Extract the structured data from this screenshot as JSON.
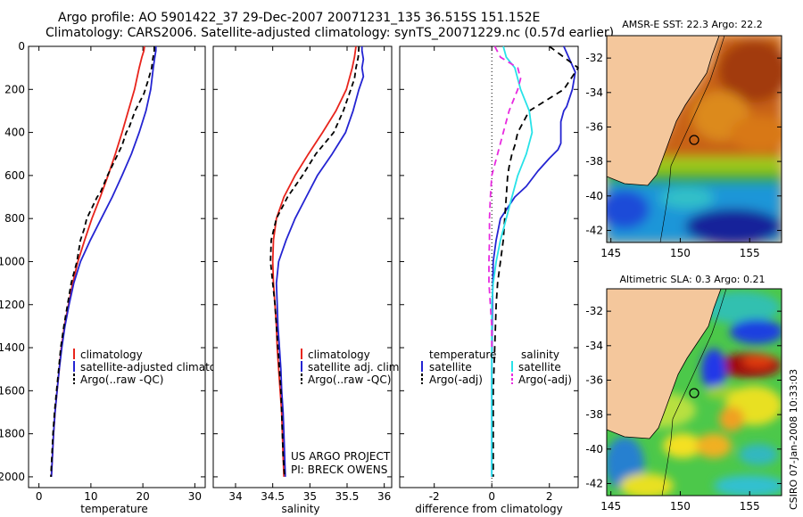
{
  "header": {
    "title_line1": "Argo profile: AO 5901422_37 29-Dec-2007 20071231_135 36.515S 151.152E",
    "title_line2": "Climatology: CARS2006. Satellite-adjusted climatology: synTS_20071229.nc (0.57d earlier)"
  },
  "colors": {
    "climatology": "#e8241c",
    "satellite": "#2424d2",
    "argo": "#000000",
    "sat_diff_sal": "#27e2e8",
    "argo_diff_sal": "#e82ae0"
  },
  "chart_data": [
    {
      "type": "line",
      "id": "temperature",
      "xlabel": "temperature",
      "ylabel": "",
      "xlim": [
        -2,
        32
      ],
      "ylim": [
        2050,
        0
      ],
      "xticks": [
        0,
        10,
        20,
        30
      ],
      "yticks": [
        0,
        200,
        400,
        600,
        800,
        1000,
        1200,
        1400,
        1600,
        1800,
        2000
      ],
      "series": [
        {
          "name": "climatology",
          "color": "#e8241c",
          "dash": "",
          "points": [
            [
              20.3,
              0
            ],
            [
              20.2,
              20
            ],
            [
              19.8,
              50
            ],
            [
              19.3,
              100
            ],
            [
              18.4,
              200
            ],
            [
              17.2,
              300
            ],
            [
              16.0,
              400
            ],
            [
              14.7,
              500
            ],
            [
              13.3,
              600
            ],
            [
              11.8,
              700
            ],
            [
              10.2,
              800
            ],
            [
              8.8,
              900
            ],
            [
              7.5,
              1000
            ],
            [
              6.5,
              1100
            ],
            [
              5.7,
              1200
            ],
            [
              4.9,
              1300
            ],
            [
              4.3,
              1400
            ],
            [
              3.9,
              1500
            ],
            [
              3.5,
              1600
            ],
            [
              3.1,
              1700
            ],
            [
              2.8,
              1800
            ],
            [
              2.6,
              1900
            ],
            [
              2.4,
              2000
            ]
          ]
        },
        {
          "name": "satellite-adjusted climatology",
          "color": "#2424d2",
          "dash": "",
          "points": [
            [
              22.5,
              0
            ],
            [
              22.5,
              20
            ],
            [
              22.3,
              50
            ],
            [
              22.0,
              100
            ],
            [
              21.5,
              200
            ],
            [
              20.6,
              300
            ],
            [
              19.3,
              400
            ],
            [
              17.8,
              500
            ],
            [
              16.0,
              600
            ],
            [
              14.1,
              700
            ],
            [
              12.0,
              800
            ],
            [
              9.9,
              900
            ],
            [
              8.0,
              1000
            ],
            [
              6.7,
              1100
            ],
            [
              5.8,
              1200
            ],
            [
              5.0,
              1300
            ],
            [
              4.4,
              1400
            ],
            [
              3.9,
              1500
            ],
            [
              3.5,
              1600
            ],
            [
              3.1,
              1700
            ],
            [
              2.8,
              1800
            ],
            [
              2.6,
              1900
            ],
            [
              2.4,
              2000
            ]
          ]
        },
        {
          "name": "Argo(..raw -QC)",
          "color": "#000000",
          "dash": "6,4",
          "points": [
            [
              22.2,
              0
            ],
            [
              22.2,
              20
            ],
            [
              21.9,
              60
            ],
            [
              21.7,
              100
            ],
            [
              21.0,
              160
            ],
            [
              20.2,
              220
            ],
            [
              18.5,
              300
            ],
            [
              17.3,
              380
            ],
            [
              16.8,
              400
            ],
            [
              16.0,
              460
            ],
            [
              15.2,
              500
            ],
            [
              14.0,
              560
            ],
            [
              13.2,
              600
            ],
            [
              11.8,
              680
            ],
            [
              11.2,
              700
            ],
            [
              10.0,
              760
            ],
            [
              9.2,
              800
            ],
            [
              8.7,
              850
            ],
            [
              8.0,
              900
            ],
            [
              7.3,
              1000
            ],
            [
              6.2,
              1100
            ],
            [
              5.5,
              1200
            ],
            [
              4.8,
              1300
            ],
            [
              4.2,
              1400
            ],
            [
              3.8,
              1500
            ],
            [
              3.4,
              1600
            ],
            [
              3.0,
              1700
            ],
            [
              2.7,
              1800
            ],
            [
              2.5,
              1900
            ],
            [
              2.3,
              2000
            ]
          ]
        }
      ],
      "legend": [
        "climatology",
        "satellite-adjusted climatology",
        "Argo(..raw -QC)"
      ],
      "legend_placement": "bottom-right"
    },
    {
      "type": "line",
      "id": "salinity",
      "xlabel": "salinity",
      "ylabel": "",
      "xlim": [
        33.7,
        36.1
      ],
      "ylim": [
        2050,
        0
      ],
      "xticks": [
        34,
        34.5,
        35,
        35.5,
        36
      ],
      "series": [
        {
          "name": "climatology",
          "color": "#e8241c",
          "dash": "",
          "points": [
            [
              35.62,
              0
            ],
            [
              35.6,
              50
            ],
            [
              35.57,
              100
            ],
            [
              35.49,
              200
            ],
            [
              35.35,
              300
            ],
            [
              35.17,
              400
            ],
            [
              34.98,
              500
            ],
            [
              34.8,
              600
            ],
            [
              34.65,
              700
            ],
            [
              34.55,
              800
            ],
            [
              34.51,
              900
            ],
            [
              34.5,
              1000
            ],
            [
              34.51,
              1100
            ],
            [
              34.53,
              1200
            ],
            [
              34.55,
              1300
            ],
            [
              34.56,
              1400
            ],
            [
              34.58,
              1500
            ],
            [
              34.6,
              1600
            ],
            [
              34.62,
              1700
            ],
            [
              34.63,
              1800
            ],
            [
              34.64,
              1900
            ],
            [
              34.65,
              2000
            ]
          ]
        },
        {
          "name": "satellite adj. clim.",
          "color": "#2424d2",
          "dash": "",
          "points": [
            [
              35.7,
              0
            ],
            [
              35.7,
              20
            ],
            [
              35.72,
              60
            ],
            [
              35.7,
              100
            ],
            [
              35.72,
              140
            ],
            [
              35.66,
              200
            ],
            [
              35.58,
              300
            ],
            [
              35.48,
              400
            ],
            [
              35.3,
              500
            ],
            [
              35.1,
              600
            ],
            [
              34.95,
              700
            ],
            [
              34.8,
              800
            ],
            [
              34.68,
              900
            ],
            [
              34.58,
              1000
            ],
            [
              34.55,
              1100
            ],
            [
              34.56,
              1200
            ],
            [
              34.57,
              1300
            ],
            [
              34.59,
              1400
            ],
            [
              34.61,
              1500
            ],
            [
              34.62,
              1600
            ],
            [
              34.64,
              1700
            ],
            [
              34.65,
              1800
            ],
            [
              34.66,
              1900
            ],
            [
              34.67,
              2000
            ]
          ]
        },
        {
          "name": "Argo(..raw -QC)",
          "color": "#000000",
          "dash": "6,4",
          "points": [
            [
              35.66,
              0
            ],
            [
              35.65,
              50
            ],
            [
              35.62,
              100
            ],
            [
              35.6,
              150
            ],
            [
              35.55,
              200
            ],
            [
              35.45,
              300
            ],
            [
              35.32,
              400
            ],
            [
              35.08,
              500
            ],
            [
              34.9,
              600
            ],
            [
              34.7,
              700
            ],
            [
              34.55,
              800
            ],
            [
              34.48,
              900
            ],
            [
              34.47,
              1000
            ],
            [
              34.5,
              1100
            ],
            [
              34.53,
              1200
            ],
            [
              34.55,
              1300
            ],
            [
              34.57,
              1400
            ],
            [
              34.59,
              1500
            ],
            [
              34.61,
              1600
            ],
            [
              34.62,
              1700
            ],
            [
              34.63,
              1800
            ],
            [
              34.64,
              1900
            ],
            [
              34.66,
              2000
            ]
          ]
        }
      ],
      "legend": [
        "climatology",
        "satellite adj. clim.",
        "Argo(..raw -QC)"
      ],
      "legend_placement": "bottom-right"
    },
    {
      "type": "line",
      "id": "difference",
      "xlabel": "difference from climatology",
      "ylabel": "",
      "xlim": [
        -3.2,
        3.0
      ],
      "ylim": [
        2050,
        0
      ],
      "xticks": [
        -2,
        0,
        2
      ],
      "series": [
        {
          "name": "temperature satellite",
          "color": "#2424d2",
          "dash": "",
          "points": [
            [
              2.5,
              0
            ],
            [
              2.9,
              120
            ],
            [
              2.8,
              200
            ],
            [
              2.6,
              280
            ],
            [
              2.5,
              300
            ],
            [
              2.4,
              350
            ],
            [
              2.4,
              400
            ],
            [
              2.4,
              450
            ],
            [
              2.3,
              480
            ],
            [
              2.0,
              520
            ],
            [
              1.6,
              580
            ],
            [
              1.2,
              650
            ],
            [
              0.8,
              700
            ],
            [
              0.5,
              760
            ],
            [
              0.3,
              800
            ],
            [
              0.15,
              900
            ],
            [
              0.05,
              1000
            ],
            [
              0.02,
              1200
            ],
            [
              0.0,
              1500
            ],
            [
              0.0,
              2000
            ]
          ]
        },
        {
          "name": "temperature Argo(-adj)",
          "color": "#000000",
          "dash": "7,5",
          "points": [
            [
              2.0,
              0
            ],
            [
              2.5,
              50
            ],
            [
              3.0,
              100
            ],
            [
              2.5,
              200
            ],
            [
              1.3,
              300
            ],
            [
              0.9,
              400
            ],
            [
              0.8,
              460
            ],
            [
              0.7,
              500
            ],
            [
              0.6,
              560
            ],
            [
              0.55,
              600
            ],
            [
              0.5,
              700
            ],
            [
              0.45,
              800
            ],
            [
              0.4,
              900
            ],
            [
              0.3,
              1000
            ],
            [
              0.2,
              1100
            ],
            [
              0.15,
              1200
            ],
            [
              0.1,
              1400
            ],
            [
              0.05,
              1600
            ],
            [
              0.05,
              2000
            ]
          ]
        },
        {
          "name": "salinity satellite",
          "color": "#27e2e8",
          "dash": "",
          "points": [
            [
              0.4,
              0
            ],
            [
              0.5,
              50
            ],
            [
              0.8,
              100
            ],
            [
              1.0,
              200
            ],
            [
              1.3,
              300
            ],
            [
              1.4,
              400
            ],
            [
              1.2,
              500
            ],
            [
              0.9,
              600
            ],
            [
              0.7,
              700
            ],
            [
              0.5,
              800
            ],
            [
              0.3,
              900
            ],
            [
              0.15,
              1000
            ],
            [
              0.05,
              1100
            ],
            [
              0.0,
              1200
            ],
            [
              0.0,
              1500
            ],
            [
              0.0,
              2000
            ]
          ]
        },
        {
          "name": "salinity Argo(-adj)",
          "color": "#e82ae0",
          "dash": "7,5",
          "points": [
            [
              0.1,
              0
            ],
            [
              0.3,
              50
            ],
            [
              0.9,
              100
            ],
            [
              1.0,
              150
            ],
            [
              0.9,
              200
            ],
            [
              0.6,
              300
            ],
            [
              0.4,
              400
            ],
            [
              0.2,
              500
            ],
            [
              0.0,
              600
            ],
            [
              -0.05,
              700
            ],
            [
              -0.08,
              800
            ],
            [
              -0.08,
              900
            ],
            [
              -0.1,
              1000
            ],
            [
              -0.1,
              1100
            ],
            [
              -0.05,
              1200
            ],
            [
              0.0,
              1300
            ],
            [
              0.0,
              1400
            ]
          ]
        }
      ],
      "legend_headers": [
        "temperature",
        "salinity"
      ],
      "legend": [
        "satellite",
        "Argo(-adj)",
        "satellite",
        "Argo(-adj)"
      ],
      "legend_placement": "bottom-right"
    }
  ],
  "y_tick_labels": [
    "0",
    "200",
    "400",
    "600",
    "800",
    "1000",
    "1200",
    "1400",
    "1600",
    "1800",
    "2000"
  ],
  "temp_x_tick_labels": [
    "0",
    "10",
    "20",
    "30"
  ],
  "sal_x_tick_labels": [
    "34",
    "34.5",
    "35",
    "35.5",
    "36"
  ],
  "diff_x_tick_labels": [
    "-2",
    "0",
    "2"
  ],
  "maps": {
    "sst_title": "AMSR-E SST: 22.3 Argo: 22.2",
    "sla_title": "Altimetric SLA: 0.3 Argo: 0.21",
    "lat_labels": [
      "-32",
      "-34",
      "-36",
      "-38",
      "-40",
      "-42"
    ],
    "lon_labels": [
      "145",
      "150",
      "155"
    ],
    "argo_location": {
      "lon": 151.152,
      "lat": -36.515
    }
  },
  "credits": {
    "project": "US ARGO PROJECT",
    "pi": "PI: BRECK OWENS",
    "stamp": "CSIRO 07-Jan-2008 10:33:03"
  }
}
